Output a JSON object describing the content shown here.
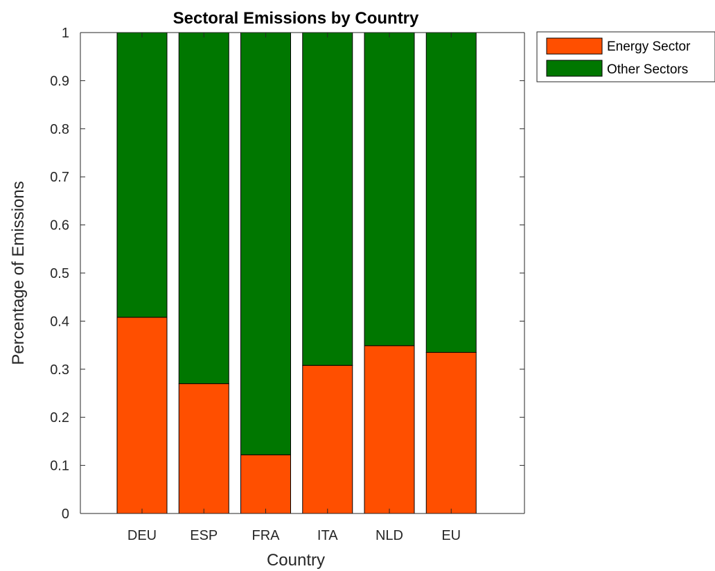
{
  "chart_data": {
    "type": "bar",
    "stacked": true,
    "title": "Sectoral Emissions by Country",
    "xlabel": "Country",
    "ylabel": "Percentage of Emissions",
    "categories": [
      "DEU",
      "ESP",
      "FRA",
      "ITA",
      "NLD",
      "EU"
    ],
    "yticks": [
      "0",
      "0.1",
      "0.2",
      "0.3",
      "0.4",
      "0.5",
      "0.6",
      "0.7",
      "0.8",
      "0.9",
      "1"
    ],
    "ylim": [
      0,
      1
    ],
    "grid": false,
    "legend_position": "outside top-right",
    "series": [
      {
        "name": "Energy Sector",
        "color": "#FF4F00",
        "values": [
          0.408,
          0.27,
          0.122,
          0.308,
          0.349,
          0.335
        ]
      },
      {
        "name": "Other Sectors",
        "color": "#007700",
        "values": [
          0.592,
          0.73,
          0.878,
          0.692,
          0.651,
          0.665
        ]
      }
    ]
  }
}
